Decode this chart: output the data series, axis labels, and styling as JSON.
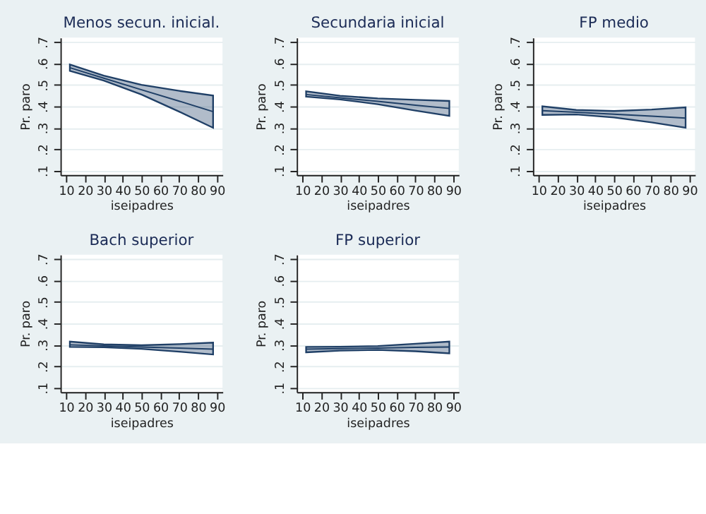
{
  "chart_data": [
    {
      "type": "line",
      "title": "Menos secun. inicial.",
      "xlabel": "iseipadres",
      "ylabel": "Pr. paro",
      "x": [
        12,
        30,
        50,
        70,
        88
      ],
      "xlim": [
        7,
        93
      ],
      "xticks": [
        10,
        20,
        30,
        40,
        50,
        60,
        70,
        80,
        90
      ],
      "ylim": [
        0.08,
        0.72
      ],
      "yticks": [
        {
          "value": 0.1,
          "label": ".1"
        },
        {
          "value": 0.2,
          "label": ".2"
        },
        {
          "value": 0.3,
          "label": ".3"
        },
        {
          "value": 0.4,
          "label": ".4"
        },
        {
          "value": 0.5,
          "label": ".5"
        },
        {
          "value": 0.6,
          "label": ".6"
        },
        {
          "value": 0.7,
          "label": ".7"
        }
      ],
      "grid": "y",
      "series": [
        {
          "color": "#1f3f66",
          "values": [
            0.58,
            0.531,
            0.477,
            0.424,
            0.375
          ],
          "lower": [
            0.565,
            0.52,
            0.455,
            0.375,
            0.3
          ],
          "upper": [
            0.595,
            0.543,
            0.5,
            0.472,
            0.45
          ]
        }
      ]
    },
    {
      "type": "line",
      "title": "Secundaria inicial",
      "xlabel": "iseipadres",
      "ylabel": "Pr. paro",
      "x": [
        12,
        30,
        50,
        70,
        88
      ],
      "xlim": [
        7,
        93
      ],
      "xticks": [
        10,
        20,
        30,
        40,
        50,
        60,
        70,
        80,
        90
      ],
      "ylim": [
        0.08,
        0.72
      ],
      "yticks": [
        {
          "value": 0.1,
          "label": ".1"
        },
        {
          "value": 0.2,
          "label": ".2"
        },
        {
          "value": 0.3,
          "label": ".3"
        },
        {
          "value": 0.4,
          "label": ".4"
        },
        {
          "value": 0.5,
          "label": ".5"
        },
        {
          "value": 0.6,
          "label": ".6"
        },
        {
          "value": 0.7,
          "label": ".7"
        }
      ],
      "grid": "y",
      "series": [
        {
          "color": "#1f3f66",
          "values": [
            0.455,
            0.44,
            0.423,
            0.405,
            0.39
          ],
          "lower": [
            0.445,
            0.432,
            0.41,
            0.38,
            0.355
          ],
          "upper": [
            0.47,
            0.449,
            0.437,
            0.43,
            0.425
          ]
        }
      ]
    },
    {
      "type": "line",
      "title": "FP medio",
      "xlabel": "iseipadres",
      "ylabel": "Pr. paro",
      "x": [
        12,
        30,
        50,
        70,
        88
      ],
      "xlim": [
        7,
        93
      ],
      "xticks": [
        10,
        20,
        30,
        40,
        50,
        60,
        70,
        80,
        90
      ],
      "ylim": [
        0.08,
        0.72
      ],
      "yticks": [
        {
          "value": 0.1,
          "label": ".1"
        },
        {
          "value": 0.2,
          "label": ".2"
        },
        {
          "value": 0.3,
          "label": ".3"
        },
        {
          "value": 0.4,
          "label": ".4"
        },
        {
          "value": 0.5,
          "label": ".5"
        },
        {
          "value": 0.6,
          "label": ".6"
        },
        {
          "value": 0.7,
          "label": ".7"
        }
      ],
      "grid": "y",
      "series": [
        {
          "color": "#1f3f66",
          "values": [
            0.38,
            0.372,
            0.363,
            0.354,
            0.345
          ],
          "lower": [
            0.36,
            0.362,
            0.348,
            0.325,
            0.3
          ],
          "upper": [
            0.4,
            0.383,
            0.378,
            0.385,
            0.395
          ]
        }
      ]
    },
    {
      "type": "line",
      "title": "Bach superior",
      "xlabel": "iseipadres",
      "ylabel": "Pr. paro",
      "x": [
        12,
        30,
        50,
        70,
        88
      ],
      "xlim": [
        7,
        93
      ],
      "xticks": [
        10,
        20,
        30,
        40,
        50,
        60,
        70,
        80,
        90
      ],
      "ylim": [
        0.08,
        0.72
      ],
      "yticks": [
        {
          "value": 0.1,
          "label": ".1"
        },
        {
          "value": 0.2,
          "label": ".2"
        },
        {
          "value": 0.3,
          "label": ".3"
        },
        {
          "value": 0.4,
          "label": ".4"
        },
        {
          "value": 0.5,
          "label": ".5"
        },
        {
          "value": 0.6,
          "label": ".6"
        },
        {
          "value": 0.7,
          "label": ".7"
        }
      ],
      "grid": "y",
      "series": [
        {
          "color": "#1f3f66",
          "values": [
            0.3,
            0.295,
            0.29,
            0.285,
            0.28
          ],
          "lower": [
            0.29,
            0.289,
            0.281,
            0.268,
            0.255
          ],
          "upper": [
            0.315,
            0.302,
            0.298,
            0.303,
            0.31
          ]
        }
      ]
    },
    {
      "type": "line",
      "title": "FP superior",
      "xlabel": "iseipadres",
      "ylabel": "Pr. paro",
      "x": [
        12,
        30,
        50,
        70,
        88
      ],
      "xlim": [
        7,
        93
      ],
      "xticks": [
        10,
        20,
        30,
        40,
        50,
        60,
        70,
        80,
        90
      ],
      "ylim": [
        0.08,
        0.72
      ],
      "yticks": [
        {
          "value": 0.1,
          "label": ".1"
        },
        {
          "value": 0.2,
          "label": ".2"
        },
        {
          "value": 0.3,
          "label": ".3"
        },
        {
          "value": 0.4,
          "label": ".4"
        },
        {
          "value": 0.5,
          "label": ".5"
        },
        {
          "value": 0.6,
          "label": ".6"
        },
        {
          "value": 0.7,
          "label": ".7"
        }
      ],
      "grid": "y",
      "series": [
        {
          "color": "#1f3f66",
          "values": [
            0.28,
            0.282,
            0.285,
            0.288,
            0.29
          ],
          "lower": [
            0.265,
            0.273,
            0.276,
            0.27,
            0.26
          ],
          "upper": [
            0.29,
            0.291,
            0.294,
            0.305,
            0.315
          ]
        }
      ]
    }
  ]
}
